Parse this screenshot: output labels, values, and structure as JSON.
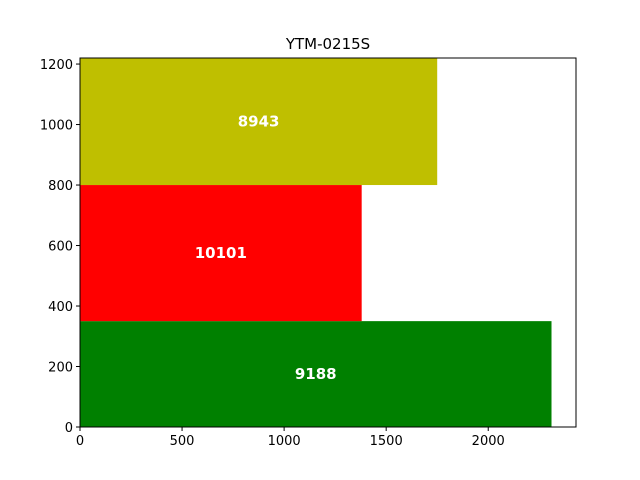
{
  "chart_data": {
    "type": "bar",
    "orientation": "stacked-rectangles",
    "title": "YTM-0215S",
    "xlabel": "",
    "ylabel": "",
    "xlim": [
      0,
      2430
    ],
    "ylim": [
      0,
      1220
    ],
    "x_ticks": [
      0,
      500,
      1000,
      1500,
      2000
    ],
    "y_ticks": [
      0,
      200,
      400,
      600,
      800,
      1000,
      1200
    ],
    "grid": false,
    "legend": "none",
    "bars": [
      {
        "label": "9188",
        "y_start": 0,
        "y_end": 350,
        "x_end": 2310,
        "color": "#008000"
      },
      {
        "label": "10101",
        "y_start": 350,
        "y_end": 800,
        "x_end": 1380,
        "color": "#ff0000"
      },
      {
        "label": "8943",
        "y_start": 800,
        "y_end": 1220,
        "x_end": 1750,
        "color": "#bfbf00"
      }
    ]
  }
}
